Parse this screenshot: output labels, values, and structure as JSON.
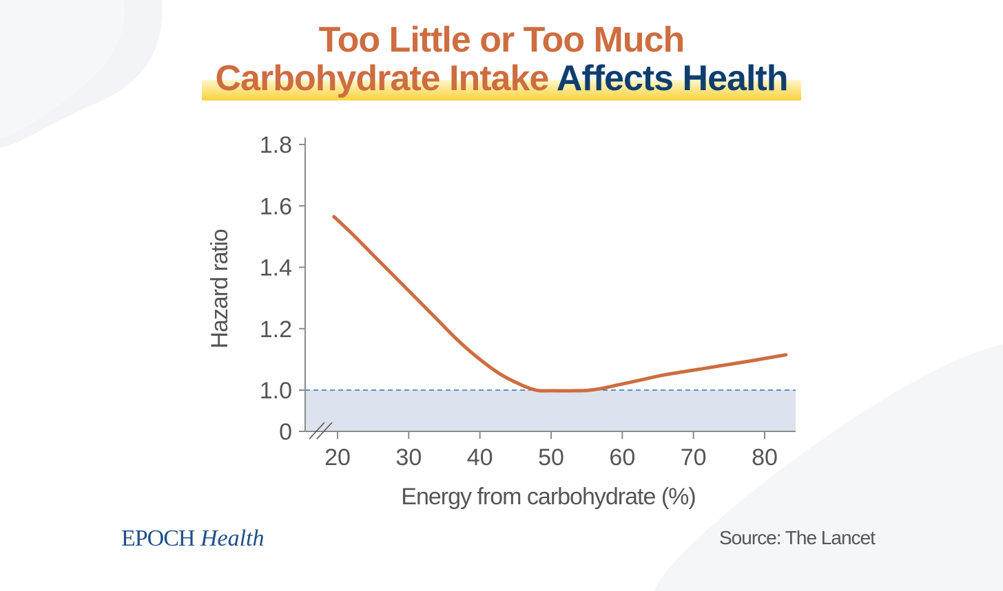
{
  "title": {
    "line1": "Too Little or Too Much",
    "line2_part1": "Carbohydrate Intake",
    "line2_part2": "Affects Health"
  },
  "chart_data": {
    "type": "line",
    "xlabel": "Energy from carbohydrate (%)",
    "ylabel": "Hazard ratio",
    "x_ticks": [
      20,
      30,
      40,
      50,
      60,
      70,
      80
    ],
    "y_ticks": [
      {
        "value": 0,
        "label": "0"
      },
      {
        "value": 1.0,
        "label": "1.0"
      },
      {
        "value": 1.2,
        "label": "1.2"
      },
      {
        "value": 1.4,
        "label": "1.4"
      },
      {
        "value": 1.6,
        "label": "1.6"
      },
      {
        "value": 1.8,
        "label": "1.8"
      }
    ],
    "axis_break": true,
    "reference_line": 1.0,
    "shaded_band": [
      0,
      1.0
    ],
    "xlim": [
      16,
      84.5
    ],
    "series": [
      {
        "name": "Hazard ratio",
        "x": [
          19.5,
          22,
          25,
          28,
          31,
          34,
          37,
          40,
          43,
          46,
          48,
          50,
          52,
          53.5,
          55,
          57,
          60,
          63,
          66,
          70,
          74,
          78,
          83
        ],
        "y": [
          1.565,
          1.51,
          1.44,
          1.37,
          1.3,
          1.23,
          1.16,
          1.1,
          1.05,
          1.015,
          0.995,
          0.985,
          0.983,
          0.985,
          0.992,
          1.005,
          1.02,
          1.035,
          1.05,
          1.065,
          1.08,
          1.095,
          1.115
        ]
      }
    ]
  },
  "colors": {
    "line": "#cd6d40",
    "band": "#dde2ef",
    "refline": "#2e6fad",
    "axis": "#8a8a8a",
    "tick_text": "#555555"
  },
  "footer": {
    "logo_epoch": "EPOCH",
    "logo_health": "Health",
    "source": "Source: The Lancet"
  }
}
